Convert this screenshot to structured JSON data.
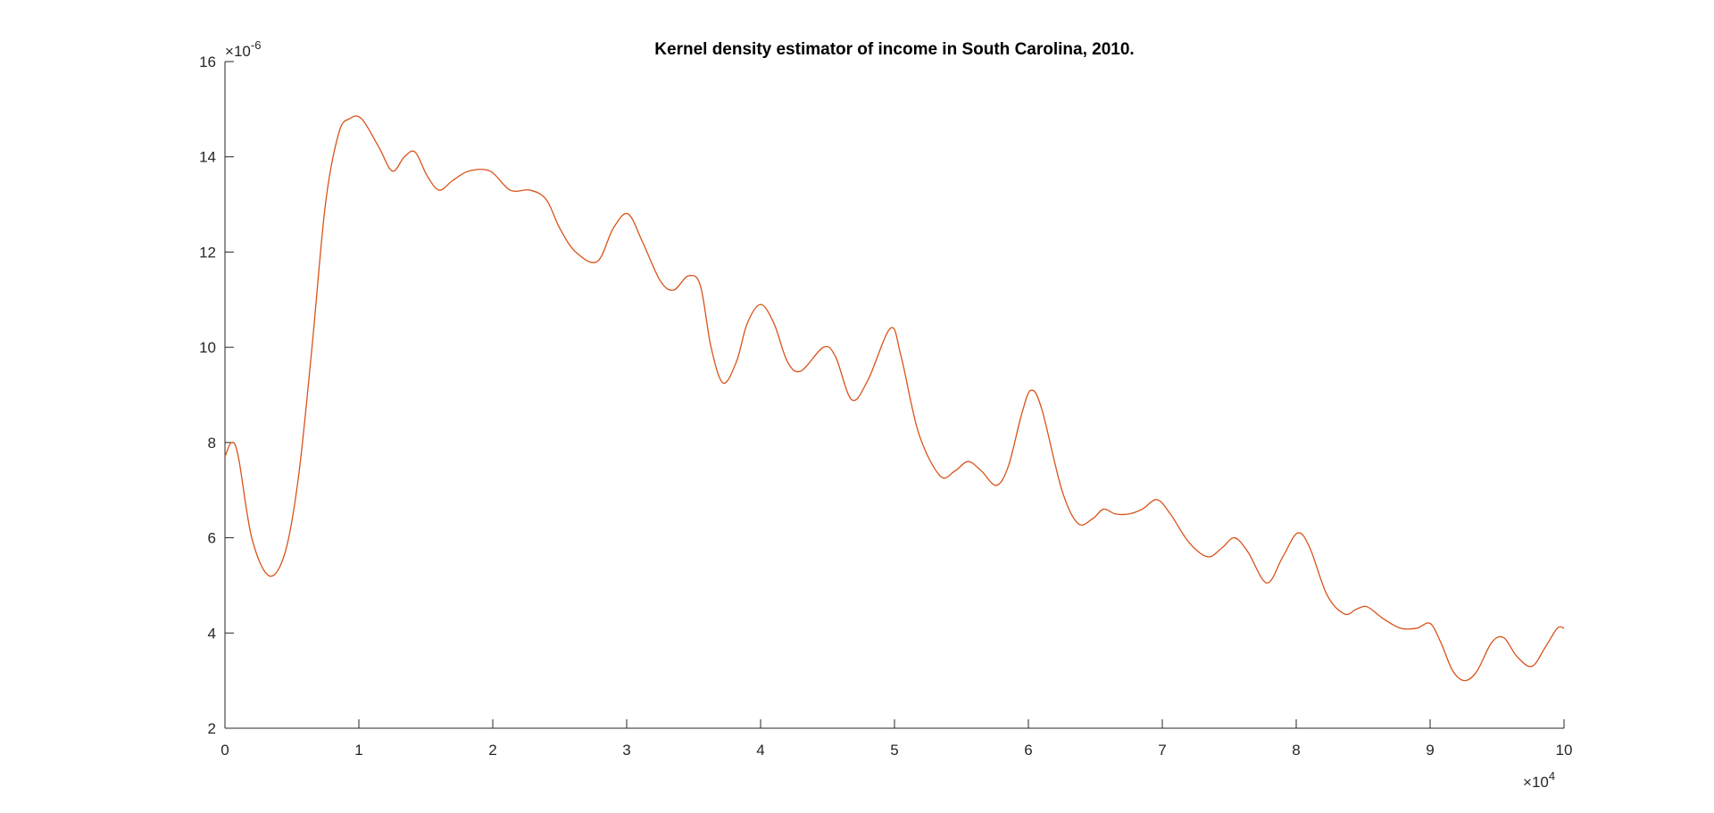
{
  "chart_data": {
    "type": "line",
    "title": "Kernel density estimator of income in South Carolina, 2010.",
    "xlabel": "",
    "ylabel": "",
    "xlim": [
      0,
      100000
    ],
    "ylim": [
      2e-06,
      1.6e-05
    ],
    "x_tick_values": [
      0,
      10000,
      20000,
      30000,
      40000,
      50000,
      60000,
      70000,
      80000,
      90000,
      100000
    ],
    "x_tick_labels": [
      "0",
      "1",
      "2",
      "3",
      "4",
      "5",
      "6",
      "7",
      "8",
      "9",
      "10"
    ],
    "y_tick_values": [
      2e-06,
      4e-06,
      6e-06,
      8e-06,
      1e-05,
      1.2e-05,
      1.4e-05,
      1.6e-05
    ],
    "y_tick_labels": [
      "2",
      "4",
      "6",
      "8",
      "10",
      "12",
      "14",
      "16"
    ],
    "x_exponent": {
      "times": "×",
      "base": "10",
      "power": "4"
    },
    "y_exponent": {
      "times": "×",
      "base": "10",
      "power": "-6"
    },
    "grid": false,
    "line_color": "#D95319",
    "series": [
      {
        "x": [
          0,
          500,
          1000,
          2000,
          3300,
          4500,
          5500,
          6500,
          7500,
          8500,
          9300,
          10200,
          11500,
          12500,
          13400,
          14200,
          15100,
          16000,
          17000,
          18200,
          19800,
          21300,
          22800,
          24000,
          25000,
          26200,
          27800,
          29000,
          30100,
          31200,
          32500,
          33500,
          34600,
          35500,
          36300,
          37200,
          38200,
          39000,
          40000,
          41000,
          42000,
          43000,
          44700,
          45600,
          46800,
          48000,
          49700,
          50500,
          51800,
          53400,
          54500,
          55500,
          56500,
          57600,
          58500,
          59500,
          60200,
          61000,
          62500,
          63700,
          64800,
          65600,
          66500,
          67500,
          68500,
          69600,
          70600,
          72000,
          73400,
          74500,
          75400,
          76400,
          77800,
          79000,
          80100,
          81000,
          82300,
          83600,
          84500,
          85300,
          86500,
          87800,
          89000,
          90000,
          90800,
          91700,
          92600,
          93500,
          94600,
          95500,
          96500,
          97600,
          98600,
          99500,
          100000
        ],
        "y": [
          7.7e-06,
          8e-06,
          7.7e-06,
          6e-06,
          5.2e-06,
          5.7e-06,
          7.3e-06,
          1e-05,
          1.3e-05,
          1.45e-05,
          1.48e-05,
          1.48e-05,
          1.42e-05,
          1.37e-05,
          1.4e-05,
          1.41e-05,
          1.36e-05,
          1.33e-05,
          1.35e-05,
          1.37e-05,
          1.37e-05,
          1.33e-05,
          1.33e-05,
          1.31e-05,
          1.25e-05,
          1.2e-05,
          1.18e-05,
          1.25e-05,
          1.28e-05,
          1.22e-05,
          1.14e-05,
          1.12e-05,
          1.15e-05,
          1.13e-05,
          1e-05,
          9.25e-06,
          9.7e-06,
          1.05e-05,
          1.09e-05,
          1.05e-05,
          9.7e-06,
          9.5e-06,
          1e-05,
          9.8e-06,
          8.9e-06,
          9.3e-06,
          1.04e-05,
          9.8e-06,
          8.2e-06,
          7.3e-06,
          7.4e-06,
          7.6e-06,
          7.4e-06,
          7.1e-06,
          7.5e-06,
          8.6e-06,
          9.1e-06,
          8.7e-06,
          7e-06,
          6.3e-06,
          6.4e-06,
          6.6e-06,
          6.5e-06,
          6.5e-06,
          6.6e-06,
          6.8e-06,
          6.5e-06,
          5.9e-06,
          5.6e-06,
          5.8e-06,
          6e-06,
          5.7e-06,
          5.05e-06,
          5.6e-06,
          6.1e-06,
          5.8e-06,
          4.8e-06,
          4.4e-06,
          4.5e-06,
          4.55e-06,
          4.3e-06,
          4.1e-06,
          4.1e-06,
          4.2e-06,
          3.8e-06,
          3.2e-06,
          3e-06,
          3.2e-06,
          3.8e-06,
          3.9e-06,
          3.5e-06,
          3.3e-06,
          3.7e-06,
          4.1e-06,
          4.1e-06
        ]
      }
    ]
  }
}
